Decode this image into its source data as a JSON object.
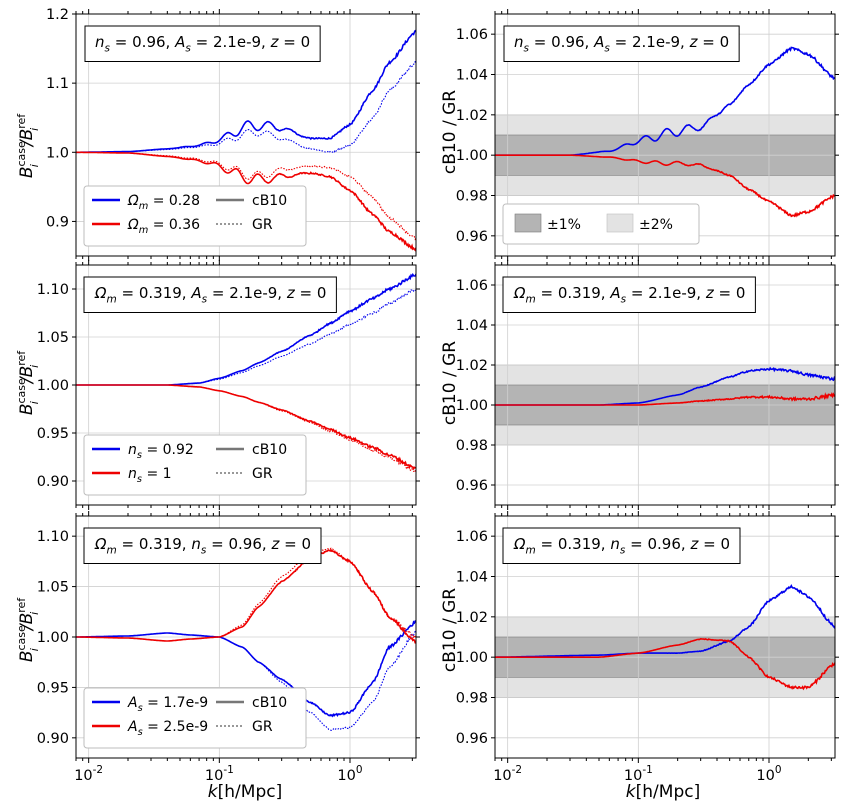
{
  "figure": {
    "xlabel": "k[h/Mpc]",
    "left_ylabel": "B_i^case/B_i^ref",
    "right_ylabel": "cB10 / GR"
  },
  "chart_data": [
    {
      "type": "line",
      "panel": "row1-left",
      "annotation": "n_s = 0.96, A_s = 2.1e-9, z = 0",
      "xscale": "log",
      "xlim": [
        0.008,
        3.2
      ],
      "ylim": [
        0.85,
        1.2
      ],
      "yticks": [
        "0.9",
        "1.0",
        "1.1",
        "1.2"
      ],
      "legend": {
        "placement": "lower-left",
        "entries": [
          "Ω_m = 0.28",
          "Ω_m = 0.36",
          "cB10",
          "GR"
        ]
      },
      "series": [
        {
          "name": "Ω_m = 0.28",
          "model": "cB10",
          "color": "#0000ee",
          "style": "solid",
          "x": [
            0.008,
            0.02,
            0.04,
            0.07,
            0.1,
            0.15,
            0.2,
            0.3,
            0.5,
            0.7,
            1.0,
            1.5,
            2.0,
            3.2
          ],
          "y": [
            1.0,
            1.001,
            1.005,
            1.01,
            1.018,
            1.035,
            1.04,
            1.035,
            1.02,
            1.02,
            1.04,
            1.09,
            1.13,
            1.175
          ]
        },
        {
          "name": "Ω_m = 0.28",
          "model": "GR",
          "color": "#0000ee",
          "style": "dotted",
          "x": [
            0.008,
            0.02,
            0.04,
            0.07,
            0.1,
            0.15,
            0.2,
            0.3,
            0.5,
            0.7,
            1.0,
            1.5,
            2.0,
            3.2
          ],
          "y": [
            1.0,
            1.001,
            1.004,
            1.008,
            1.013,
            1.025,
            1.03,
            1.02,
            1.005,
            1.0,
            1.01,
            1.05,
            1.09,
            1.13
          ]
        },
        {
          "name": "Ω_m = 0.36",
          "model": "cB10",
          "color": "#ee0000",
          "style": "solid",
          "x": [
            0.008,
            0.02,
            0.04,
            0.07,
            0.1,
            0.15,
            0.2,
            0.3,
            0.5,
            0.7,
            1.0,
            1.5,
            2.0,
            3.2
          ],
          "y": [
            1.0,
            0.999,
            0.994,
            0.988,
            0.98,
            0.965,
            0.96,
            0.965,
            0.97,
            0.965,
            0.945,
            0.91,
            0.885,
            0.86
          ]
        },
        {
          "name": "Ω_m = 0.36",
          "model": "GR",
          "color": "#ee0000",
          "style": "dotted",
          "x": [
            0.008,
            0.02,
            0.04,
            0.07,
            0.1,
            0.15,
            0.2,
            0.3,
            0.5,
            0.7,
            1.0,
            1.5,
            2.0,
            3.2
          ],
          "y": [
            1.0,
            0.999,
            0.995,
            0.99,
            0.983,
            0.97,
            0.965,
            0.975,
            0.98,
            0.978,
            0.965,
            0.935,
            0.905,
            0.875
          ]
        }
      ]
    },
    {
      "type": "line",
      "panel": "row1-right",
      "annotation": "n_s = 0.96, A_s = 2.1e-9, z = 0",
      "xscale": "log",
      "xlim": [
        0.008,
        3.2
      ],
      "ylim": [
        0.95,
        1.07
      ],
      "yticks": [
        "0.96",
        "0.98",
        "1.00",
        "1.02",
        "1.04",
        "1.06"
      ],
      "bands": [
        {
          "label": "±1%",
          "range": [
            0.99,
            1.01
          ],
          "color": "#b4b4b4"
        },
        {
          "label": "±2%",
          "range": [
            0.98,
            1.02
          ],
          "color": "#e3e3e3"
        }
      ],
      "legend": {
        "placement": "lower-left",
        "entries": [
          "±1%",
          "±2%"
        ]
      },
      "series": [
        {
          "name": "Ω_m = 0.28",
          "color": "#0000ee",
          "x": [
            0.008,
            0.03,
            0.06,
            0.1,
            0.15,
            0.2,
            0.3,
            0.5,
            0.7,
            1.0,
            1.5,
            2.0,
            3.2
          ],
          "y": [
            1.0,
            1.0,
            1.002,
            1.007,
            1.01,
            1.012,
            1.014,
            1.025,
            1.035,
            1.045,
            1.053,
            1.05,
            1.038
          ]
        },
        {
          "name": "Ω_m = 0.36",
          "color": "#ee0000",
          "x": [
            0.008,
            0.03,
            0.06,
            0.1,
            0.15,
            0.2,
            0.3,
            0.5,
            0.7,
            1.0,
            1.5,
            2.0,
            3.2
          ],
          "y": [
            1.0,
            1.0,
            0.999,
            0.997,
            0.996,
            0.996,
            0.995,
            0.99,
            0.983,
            0.977,
            0.97,
            0.972,
            0.98
          ]
        }
      ]
    },
    {
      "type": "line",
      "panel": "row2-left",
      "annotation": "Ω_m = 0.319, A_s = 2.1e-9, z = 0",
      "xscale": "log",
      "xlim": [
        0.008,
        3.2
      ],
      "ylim": [
        0.875,
        1.125
      ],
      "yticks": [
        "0.90",
        "0.95",
        "1.00",
        "1.05",
        "1.10"
      ],
      "legend": {
        "placement": "lower-left",
        "entries": [
          "n_s = 0.92",
          "n_s = 1",
          "cB10",
          "GR"
        ]
      },
      "series": [
        {
          "name": "n_s = 0.92",
          "model": "cB10",
          "color": "#0000ee",
          "style": "solid",
          "x": [
            0.008,
            0.04,
            0.07,
            0.1,
            0.15,
            0.2,
            0.3,
            0.5,
            0.7,
            1.0,
            1.5,
            2.0,
            3.2
          ],
          "y": [
            1.0,
            1.0,
            1.002,
            1.007,
            1.015,
            1.023,
            1.035,
            1.052,
            1.064,
            1.077,
            1.09,
            1.1,
            1.115
          ]
        },
        {
          "name": "n_s = 0.92",
          "model": "GR",
          "color": "#0000ee",
          "style": "dotted",
          "x": [
            0.008,
            0.04,
            0.07,
            0.1,
            0.15,
            0.2,
            0.3,
            0.5,
            0.7,
            1.0,
            1.5,
            2.0,
            3.2
          ],
          "y": [
            1.0,
            1.0,
            1.002,
            1.006,
            1.013,
            1.02,
            1.03,
            1.043,
            1.053,
            1.063,
            1.075,
            1.085,
            1.1
          ]
        },
        {
          "name": "n_s = 1",
          "model": "cB10",
          "color": "#ee0000",
          "style": "solid",
          "x": [
            0.008,
            0.04,
            0.07,
            0.1,
            0.15,
            0.2,
            0.3,
            0.5,
            0.7,
            1.0,
            1.5,
            2.0,
            3.2
          ],
          "y": [
            1.0,
            1.0,
            0.998,
            0.994,
            0.988,
            0.982,
            0.974,
            0.962,
            0.954,
            0.945,
            0.935,
            0.927,
            0.913
          ]
        },
        {
          "name": "n_s = 1",
          "model": "GR",
          "color": "#ee0000",
          "style": "dotted",
          "x": [
            0.008,
            0.04,
            0.07,
            0.1,
            0.15,
            0.2,
            0.3,
            0.5,
            0.7,
            1.0,
            1.5,
            2.0,
            3.2
          ],
          "y": [
            1.0,
            1.0,
            0.998,
            0.994,
            0.988,
            0.982,
            0.973,
            0.961,
            0.952,
            0.943,
            0.932,
            0.924,
            0.91
          ]
        }
      ]
    },
    {
      "type": "line",
      "panel": "row2-right",
      "annotation": "Ω_m = 0.319, A_s = 2.1e-9, z = 0",
      "xscale": "log",
      "xlim": [
        0.008,
        3.2
      ],
      "ylim": [
        0.95,
        1.07
      ],
      "yticks": [
        "0.96",
        "0.98",
        "1.00",
        "1.02",
        "1.04",
        "1.06"
      ],
      "bands": [
        {
          "label": "±1%",
          "range": [
            0.99,
            1.01
          ],
          "color": "#b4b4b4"
        },
        {
          "label": "±2%",
          "range": [
            0.98,
            1.02
          ],
          "color": "#e3e3e3"
        }
      ],
      "series": [
        {
          "name": "n_s = 0.92",
          "color": "#0000ee",
          "x": [
            0.008,
            0.05,
            0.1,
            0.2,
            0.3,
            0.5,
            0.7,
            1.0,
            1.5,
            2.0,
            3.2
          ],
          "y": [
            1.0,
            1.0,
            1.001,
            1.005,
            1.009,
            1.014,
            1.017,
            1.018,
            1.017,
            1.015,
            1.013
          ]
        },
        {
          "name": "n_s = 1",
          "color": "#ee0000",
          "x": [
            0.008,
            0.05,
            0.1,
            0.2,
            0.3,
            0.5,
            0.7,
            1.0,
            1.5,
            2.0,
            3.2
          ],
          "y": [
            1.0,
            1.0,
            1.0,
            1.001,
            1.002,
            1.003,
            1.004,
            1.004,
            1.003,
            1.003,
            1.005
          ]
        }
      ]
    },
    {
      "type": "line",
      "panel": "row3-left",
      "annotation": "Ω_m = 0.319, n_s = 0.96, z = 0",
      "xscale": "log",
      "xlim": [
        0.008,
        3.2
      ],
      "ylim": [
        0.88,
        1.12
      ],
      "yticks": [
        "0.90",
        "0.95",
        "1.00",
        "1.05",
        "1.10"
      ],
      "legend": {
        "placement": "lower-left",
        "entries": [
          "A_s = 1.7e-9",
          "A_s = 2.5e-9",
          "cB10",
          "GR"
        ]
      },
      "series": [
        {
          "name": "A_s = 1.7e-9",
          "model": "cB10",
          "color": "#0000ee",
          "style": "solid",
          "x": [
            0.008,
            0.02,
            0.04,
            0.06,
            0.1,
            0.15,
            0.2,
            0.3,
            0.5,
            0.7,
            1.0,
            1.5,
            2.0,
            3.2
          ],
          "y": [
            1.0,
            1.001,
            1.004,
            1.002,
            1.0,
            0.99,
            0.975,
            0.958,
            0.935,
            0.922,
            0.925,
            0.955,
            0.99,
            1.015
          ]
        },
        {
          "name": "A_s = 1.7e-9",
          "model": "GR",
          "color": "#0000ee",
          "style": "dotted",
          "x": [
            0.008,
            0.02,
            0.04,
            0.06,
            0.1,
            0.15,
            0.2,
            0.3,
            0.5,
            0.7,
            1.0,
            1.5,
            2.0,
            3.2
          ],
          "y": [
            1.0,
            1.001,
            1.004,
            1.002,
            1.0,
            0.99,
            0.975,
            0.955,
            0.925,
            0.908,
            0.91,
            0.935,
            0.97,
            1.005
          ]
        },
        {
          "name": "A_s = 2.5e-9",
          "model": "cB10",
          "color": "#ee0000",
          "style": "solid",
          "x": [
            0.008,
            0.02,
            0.04,
            0.06,
            0.1,
            0.15,
            0.2,
            0.3,
            0.5,
            0.7,
            1.0,
            1.5,
            2.0,
            3.2
          ],
          "y": [
            1.0,
            0.999,
            0.996,
            0.998,
            1.0,
            1.01,
            1.03,
            1.055,
            1.078,
            1.086,
            1.075,
            1.045,
            1.02,
            0.995
          ]
        },
        {
          "name": "A_s = 2.5e-9",
          "model": "GR",
          "color": "#ee0000",
          "style": "dotted",
          "x": [
            0.008,
            0.02,
            0.04,
            0.06,
            0.1,
            0.15,
            0.2,
            0.3,
            0.5,
            0.7,
            1.0,
            1.5,
            2.0,
            3.2
          ],
          "y": [
            1.0,
            0.999,
            0.996,
            0.998,
            1.0,
            1.012,
            1.033,
            1.06,
            1.083,
            1.088,
            1.075,
            1.045,
            1.02,
            1.0
          ]
        }
      ]
    },
    {
      "type": "line",
      "panel": "row3-right",
      "annotation": "Ω_m = 0.319, n_s = 0.96, z = 0",
      "xscale": "log",
      "xlim": [
        0.008,
        3.2
      ],
      "ylim": [
        0.95,
        1.07
      ],
      "yticks": [
        "0.96",
        "0.98",
        "1.00",
        "1.02",
        "1.04",
        "1.06"
      ],
      "bands": [
        {
          "label": "±1%",
          "range": [
            0.99,
            1.01
          ],
          "color": "#b4b4b4"
        },
        {
          "label": "±2%",
          "range": [
            0.98,
            1.02
          ],
          "color": "#e3e3e3"
        }
      ],
      "series": [
        {
          "name": "A_s = 1.7e-9",
          "color": "#0000ee",
          "x": [
            0.008,
            0.05,
            0.1,
            0.2,
            0.3,
            0.5,
            0.7,
            1.0,
            1.5,
            2.0,
            3.2
          ],
          "y": [
            1.0,
            1.001,
            1.002,
            1.002,
            1.003,
            1.008,
            1.015,
            1.028,
            1.035,
            1.03,
            1.015
          ]
        },
        {
          "name": "A_s = 2.5e-9",
          "color": "#ee0000",
          "x": [
            0.008,
            0.05,
            0.1,
            0.2,
            0.3,
            0.5,
            0.7,
            1.0,
            1.5,
            2.0,
            3.2
          ],
          "y": [
            1.0,
            1.0,
            1.002,
            1.006,
            1.009,
            1.008,
            1.0,
            0.99,
            0.985,
            0.985,
            0.997
          ]
        }
      ]
    }
  ]
}
